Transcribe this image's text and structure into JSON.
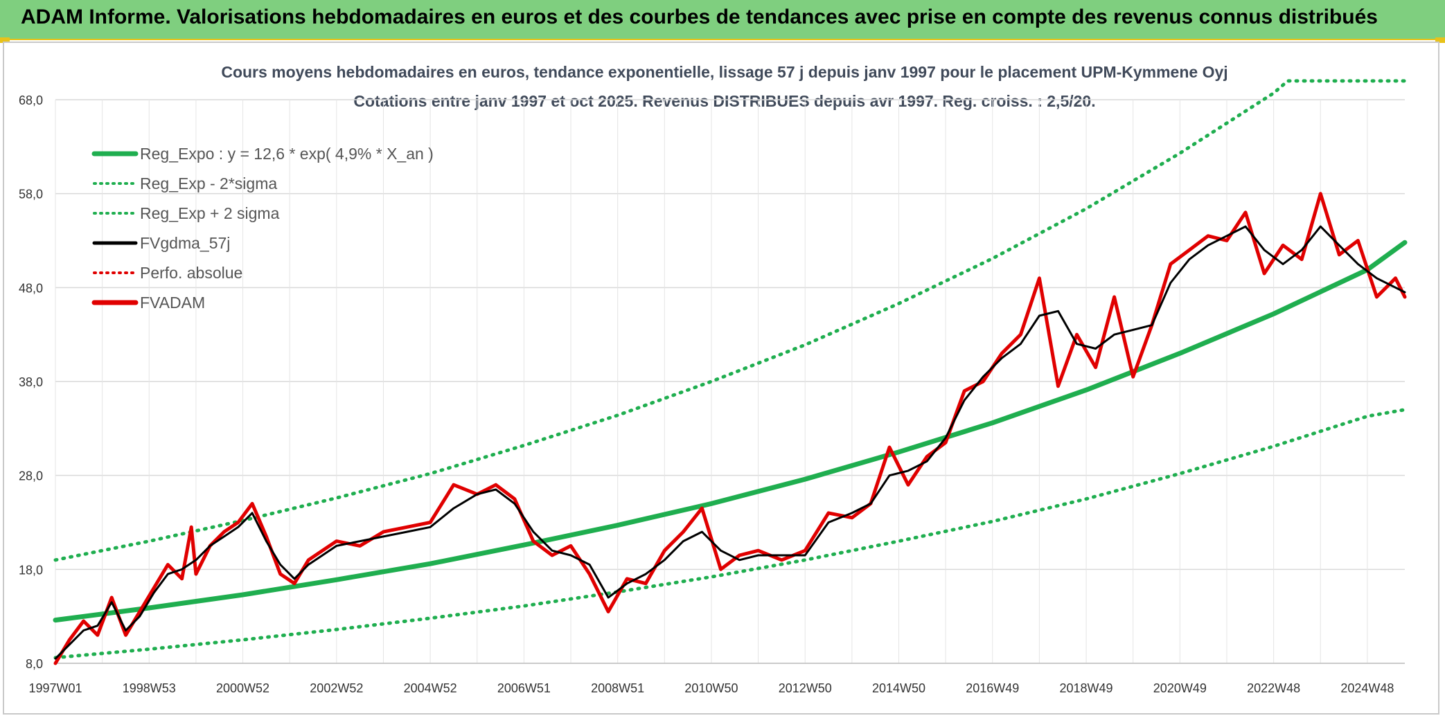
{
  "banner": {
    "title": "ADAM Informe. Valorisations hebdomadaires en euros et des courbes de tendances avec prise en compte des revenus connus distribués"
  },
  "colors": {
    "banner_bg": "#7fcf7f",
    "regression": "#1fae4f",
    "regression_band": "#1fae4f",
    "moving_average": "#000000",
    "perf_absolue": "#e00000",
    "fvadam": "#e00000",
    "grid": "#d9d9d9"
  },
  "chart_data": {
    "type": "line",
    "title_line1": "Cours moyens hebdomadaires en euros, tendance exponentielle, lissage 57 j depuis janv 1997 pour le placement UPM-Kymmene Oyj",
    "title_line2": "Cotations entre janv 1997 et oct 2025. Revenus DISTRIBUES depuis avr 1997. Reg. croiss. : 2,5/20.",
    "xlabel": "",
    "ylabel": "",
    "x_range": [
      1997.0,
      2025.8
    ],
    "ylim": [
      8,
      68
    ],
    "yticks": [
      "8,0",
      "18,0",
      "28,0",
      "38,0",
      "48,0",
      "58,0",
      "68,0"
    ],
    "ytick_values": [
      8,
      18,
      28,
      38,
      48,
      58,
      68
    ],
    "xtick_labels": [
      "1997W01",
      "1998W53",
      "2000W52",
      "2002W52",
      "2004W52",
      "2006W51",
      "2008W51",
      "2010W50",
      "2012W50",
      "2014W50",
      "2016W49",
      "2018W49",
      "2020W49",
      "2022W48",
      "2024W48"
    ],
    "xtick_values": [
      1997.0,
      1999.0,
      2001.0,
      2003.0,
      2005.0,
      2007.0,
      2009.0,
      2011.0,
      2013.0,
      2015.0,
      2017.0,
      2019.0,
      2021.0,
      2023.0,
      2025.0
    ],
    "legend": [
      {
        "label": "Reg_Expo : y = 12,6 * exp( 4,9% *  X_an )",
        "style": "solid-thick",
        "color": "#1fae4f"
      },
      {
        "label": "Reg_Exp - 2*sigma",
        "style": "dotted",
        "color": "#1fae4f"
      },
      {
        "label": "Reg_Exp + 2 sigma",
        "style": "dotted",
        "color": "#1fae4f"
      },
      {
        "label": "FVgdma_57j",
        "style": "solid",
        "color": "#000000"
      },
      {
        "label": "Perfo. absolue",
        "style": "dotted",
        "color": "#e00000"
      },
      {
        "label": "FVADAM",
        "style": "solid-thick",
        "color": "#e00000"
      }
    ],
    "series": [
      {
        "name": "Reg_Expo",
        "x": [
          1997.0,
          1999.0,
          2001.0,
          2003.0,
          2005.0,
          2007.0,
          2009.0,
          2011.0,
          2013.0,
          2015.0,
          2017.0,
          2019.0,
          2021.0,
          2023.0,
          2025.0,
          2025.8
        ],
        "y": [
          12.6,
          13.9,
          15.3,
          16.9,
          18.6,
          20.6,
          22.7,
          25.0,
          27.6,
          30.5,
          33.6,
          37.1,
          41.0,
          45.2,
          49.9,
          52.8
        ]
      },
      {
        "name": "Reg_Exp - 2*sigma",
        "x": [
          1997.0,
          1999.0,
          2001.0,
          2003.0,
          2005.0,
          2007.0,
          2009.0,
          2011.0,
          2013.0,
          2015.0,
          2017.0,
          2019.0,
          2021.0,
          2023.0,
          2025.0,
          2025.8
        ],
        "y": [
          8.6,
          9.5,
          10.5,
          11.6,
          12.8,
          14.1,
          15.6,
          17.2,
          19.0,
          21.0,
          23.1,
          25.5,
          28.2,
          31.1,
          34.3,
          35.0
        ]
      },
      {
        "name": "Reg_Exp + 2 sigma",
        "x": [
          1997.0,
          1999.0,
          2001.0,
          2003.0,
          2005.0,
          2007.0,
          2009.0,
          2011.0,
          2013.0,
          2015.0,
          2017.0,
          2019.0,
          2021.0,
          2023.0,
          2023.3,
          2025.8
        ],
        "y": [
          19.0,
          21.0,
          23.2,
          25.6,
          28.2,
          31.2,
          34.4,
          38.0,
          41.9,
          46.3,
          51.1,
          56.4,
          62.3,
          68.7,
          70.0,
          70.0
        ]
      },
      {
        "name": "FVgdma_57j",
        "x": [
          1997.0,
          1997.3,
          1997.6,
          1997.9,
          1998.2,
          1998.5,
          1998.8,
          1999.1,
          1999.4,
          1999.7,
          2000.0,
          2000.3,
          2000.6,
          2000.9,
          2001.2,
          2001.5,
          2001.8,
          2002.1,
          2002.4,
          2002.7,
          2003.0,
          2003.5,
          2004.0,
          2004.5,
          2005.0,
          2005.5,
          2006.0,
          2006.4,
          2006.8,
          2007.2,
          2007.6,
          2008.0,
          2008.4,
          2008.8,
          2009.2,
          2009.6,
          2010.0,
          2010.4,
          2010.8,
          2011.2,
          2011.6,
          2012.0,
          2012.5,
          2013.0,
          2013.5,
          2014.0,
          2014.4,
          2014.8,
          2015.2,
          2015.6,
          2016.0,
          2016.4,
          2016.8,
          2017.2,
          2017.6,
          2018.0,
          2018.4,
          2018.8,
          2019.2,
          2019.6,
          2020.0,
          2020.4,
          2020.8,
          2021.2,
          2021.6,
          2022.0,
          2022.4,
          2022.8,
          2023.2,
          2023.6,
          2024.0,
          2024.4,
          2024.8,
          2025.2,
          2025.6,
          2025.8
        ],
        "y": [
          8.5,
          10.0,
          11.5,
          12.0,
          14.5,
          11.5,
          13.0,
          15.5,
          17.5,
          18.0,
          19.0,
          20.5,
          21.5,
          22.5,
          24.0,
          21.0,
          18.5,
          17.0,
          18.5,
          19.5,
          20.5,
          21.0,
          21.5,
          22.0,
          22.5,
          24.5,
          26.0,
          26.5,
          25.0,
          22.0,
          20.0,
          19.5,
          18.5,
          15.0,
          16.5,
          17.5,
          19.0,
          21.0,
          22.0,
          20.0,
          19.0,
          19.5,
          19.5,
          19.5,
          23.0,
          24.0,
          25.0,
          28.0,
          28.5,
          29.5,
          32.0,
          36.0,
          38.5,
          40.5,
          42.0,
          45.0,
          45.5,
          42.0,
          41.5,
          43.0,
          43.5,
          44.0,
          48.5,
          51.0,
          52.5,
          53.5,
          54.5,
          52.0,
          50.5,
          52.0,
          54.5,
          52.5,
          50.5,
          49.0,
          48.0,
          47.5
        ]
      },
      {
        "name": "FVADAM",
        "x": [
          1997.0,
          1997.3,
          1997.6,
          1997.9,
          1998.2,
          1998.5,
          1998.8,
          1999.1,
          1999.4,
          1999.7,
          1999.9,
          2000.0,
          2000.3,
          2000.6,
          2000.9,
          2001.2,
          2001.5,
          2001.8,
          2002.1,
          2002.4,
          2002.7,
          2003.0,
          2003.5,
          2004.0,
          2004.5,
          2005.0,
          2005.5,
          2006.0,
          2006.4,
          2006.8,
          2007.2,
          2007.6,
          2008.0,
          2008.4,
          2008.8,
          2009.2,
          2009.6,
          2010.0,
          2010.4,
          2010.8,
          2011.2,
          2011.6,
          2012.0,
          2012.5,
          2013.0,
          2013.5,
          2014.0,
          2014.4,
          2014.8,
          2015.2,
          2015.6,
          2016.0,
          2016.4,
          2016.8,
          2017.2,
          2017.6,
          2018.0,
          2018.4,
          2018.8,
          2019.2,
          2019.6,
          2020.0,
          2020.4,
          2020.8,
          2021.2,
          2021.6,
          2022.0,
          2022.4,
          2022.8,
          2023.2,
          2023.6,
          2024.0,
          2024.4,
          2024.8,
          2025.2,
          2025.6,
          2025.8
        ],
        "y": [
          8.0,
          10.5,
          12.5,
          11.0,
          15.0,
          11.0,
          13.5,
          16.0,
          18.5,
          17.0,
          22.5,
          17.5,
          20.5,
          22.0,
          23.0,
          25.0,
          21.5,
          17.5,
          16.5,
          19.0,
          20.0,
          21.0,
          20.5,
          22.0,
          22.5,
          23.0,
          27.0,
          26.0,
          27.0,
          25.5,
          21.0,
          19.5,
          20.5,
          17.5,
          13.5,
          17.0,
          16.5,
          20.0,
          22.0,
          24.5,
          18.0,
          19.5,
          20.0,
          19.0,
          20.0,
          24.0,
          23.5,
          25.0,
          31.0,
          27.0,
          30.0,
          31.5,
          37.0,
          38.0,
          41.0,
          43.0,
          49.0,
          37.5,
          43.0,
          39.5,
          47.0,
          38.5,
          44.0,
          50.5,
          52.0,
          53.5,
          53.0,
          56.0,
          49.5,
          52.5,
          51.0,
          58.0,
          51.5,
          53.0,
          47.0,
          49.0,
          47.0
        ]
      }
    ]
  }
}
